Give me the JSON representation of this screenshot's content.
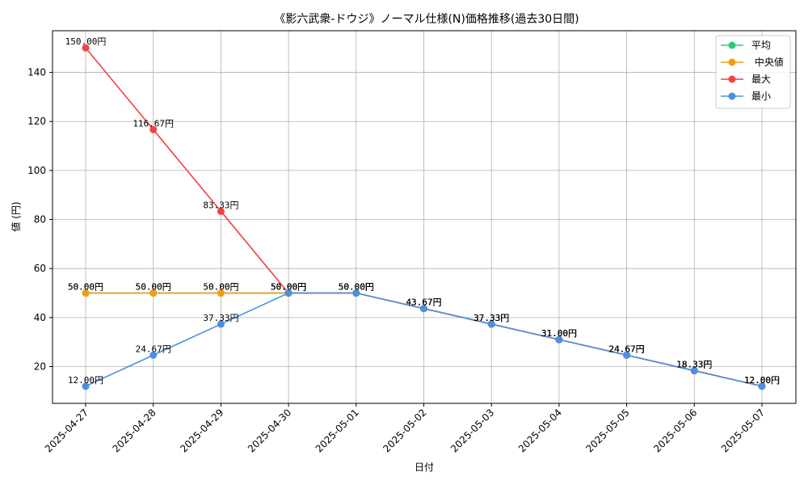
{
  "chart_data": {
    "type": "line",
    "title": "《影六武衆-ドウジ》ノーマル仕様(N)価格推移(過去30日間)",
    "xlabel": "日付",
    "ylabel": "値 (円)",
    "x": [
      "2025-04-27",
      "2025-04-28",
      "2025-04-29",
      "2025-04-30",
      "2025-05-01",
      "2025-05-02",
      "2025-05-03",
      "2025-05-04",
      "2025-05-05",
      "2025-05-06",
      "2025-05-07"
    ],
    "ylim": [
      5,
      157
    ],
    "yticks": [
      20,
      40,
      60,
      80,
      100,
      120,
      140
    ],
    "grid": true,
    "legend_position": "top-right",
    "label_suffix": "円",
    "series": [
      {
        "name": "平均",
        "color": "#2ecc71",
        "values": [
          50.0,
          50.0,
          50.0,
          50.0,
          50.0,
          43.67,
          37.33,
          31.0,
          24.67,
          18.33,
          12.0
        ]
      },
      {
        "name": " 中央値",
        "color": "#f39c12",
        "values": [
          50.0,
          50.0,
          50.0,
          50.0,
          50.0,
          43.67,
          37.33,
          31.0,
          24.67,
          18.33,
          12.0
        ]
      },
      {
        "name": "最大",
        "color": "#ef4444",
        "values": [
          150.0,
          116.67,
          83.33,
          50.0,
          50.0,
          43.67,
          37.33,
          31.0,
          24.67,
          18.33,
          12.0
        ]
      },
      {
        "name": "最小",
        "color": "#4a90e2",
        "values": [
          12.0,
          24.67,
          37.33,
          50.0,
          50.0,
          43.67,
          37.33,
          31.0,
          24.67,
          18.33,
          12.0
        ]
      }
    ]
  }
}
